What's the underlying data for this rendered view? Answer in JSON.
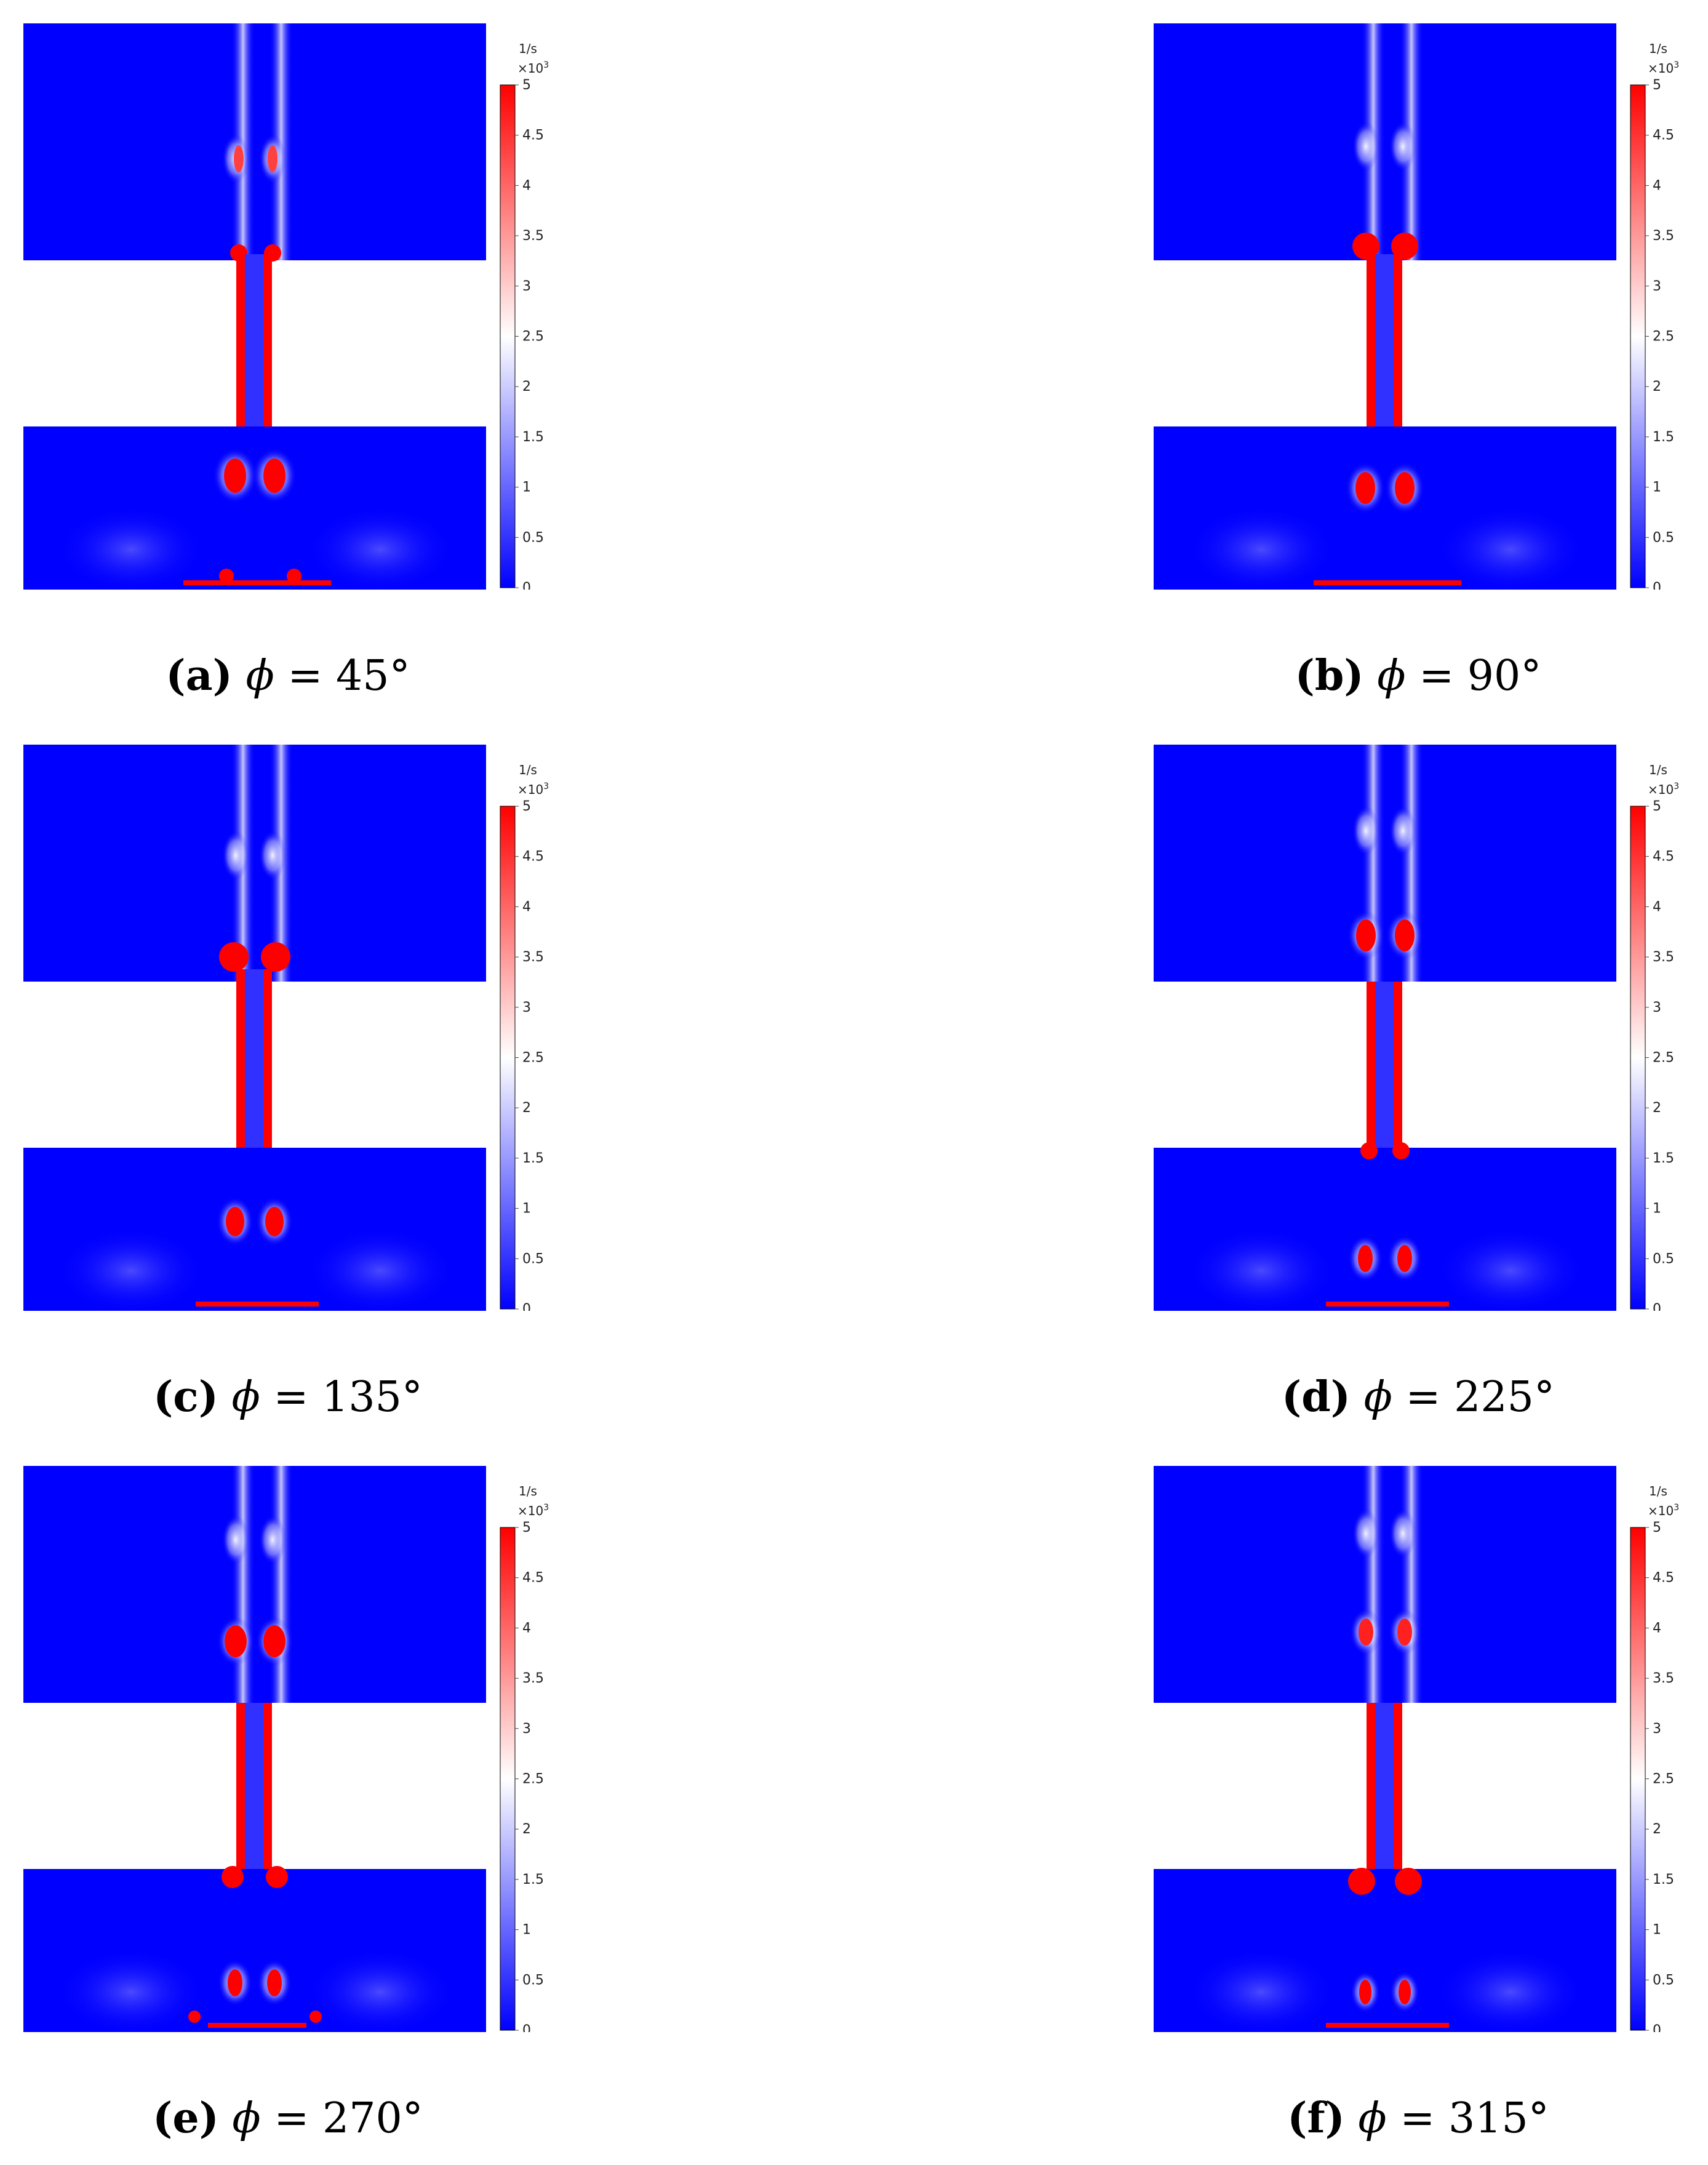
{
  "colorbar": {
    "unit": "1/s",
    "multiplier": "×10",
    "multiplier_exp": "3",
    "ticks": [
      "0",
      "0.5",
      "1",
      "1.5",
      "2",
      "2.5",
      "3",
      "3.5",
      "4",
      "4.5",
      "5"
    ],
    "colors": {
      "low": "#0000ff",
      "mid": "#ffffff",
      "high": "#ff0000"
    }
  },
  "panels": [
    {
      "tag": "(a)",
      "symbol": "ϕ",
      "eq": "=",
      "value": "45°"
    },
    {
      "tag": "(b)",
      "symbol": "ϕ",
      "eq": "=",
      "value": "90°"
    },
    {
      "tag": "(c)",
      "symbol": "ϕ",
      "eq": "=",
      "value": "135°"
    },
    {
      "tag": "(d)",
      "symbol": "ϕ",
      "eq": "=",
      "value": "225°"
    },
    {
      "tag": "(e)",
      "symbol": "ϕ",
      "eq": "=",
      "value": "270°"
    },
    {
      "tag": "(f)",
      "symbol": "ϕ",
      "eq": "=",
      "value": "315°"
    }
  ]
}
